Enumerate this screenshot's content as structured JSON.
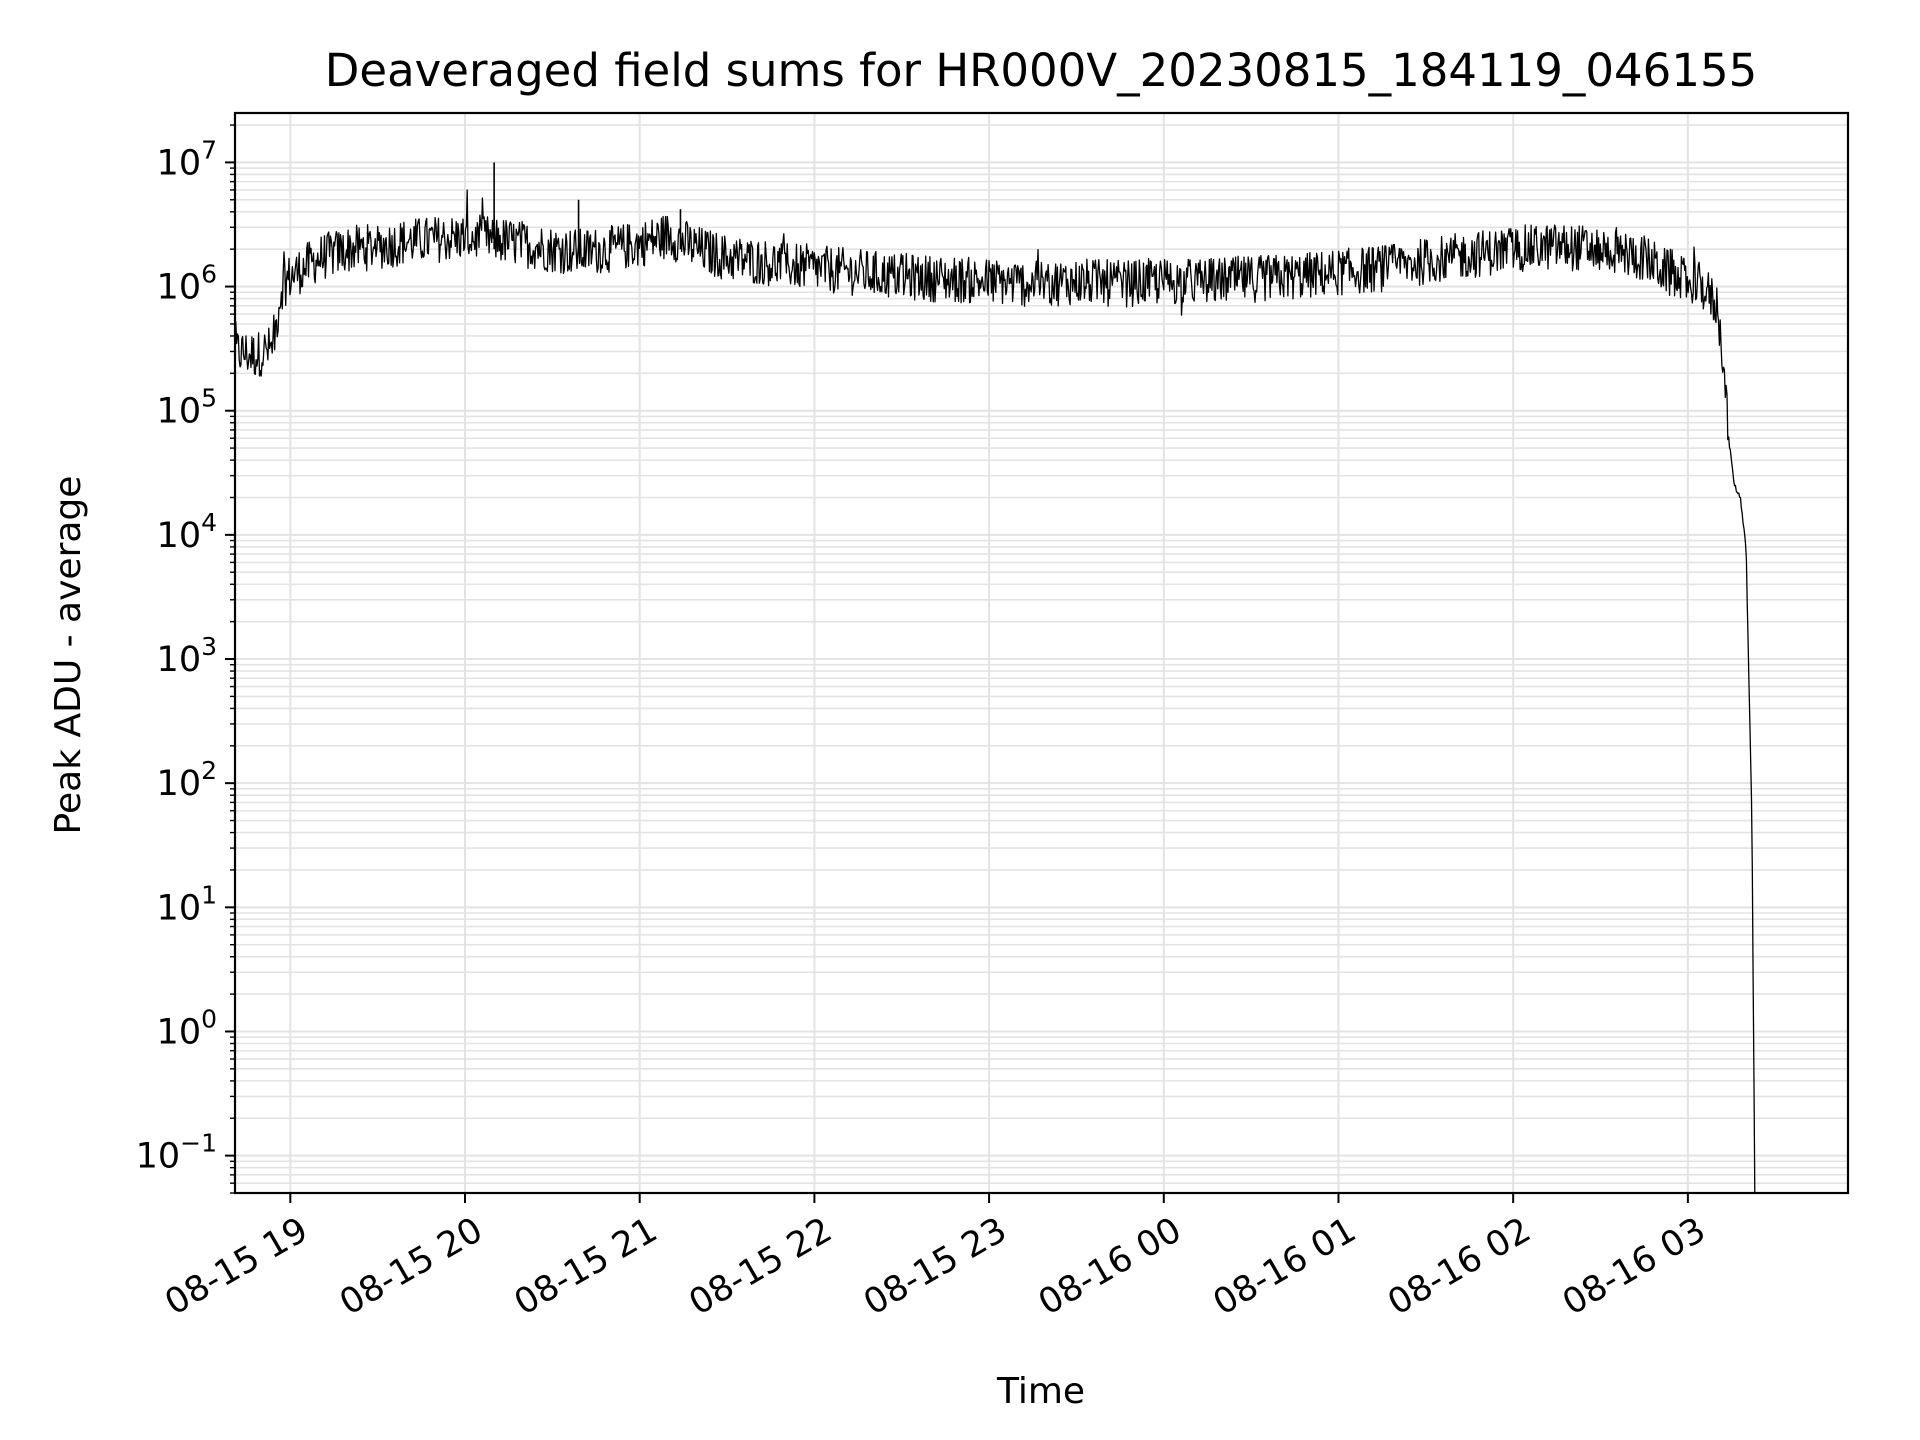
{
  "chart_data": {
    "type": "line",
    "title": "Deaveraged field sums for HR000V_20230815_184119_046155",
    "xlabel": "Time",
    "ylabel": "Peak ADU - average",
    "yscale": "log",
    "ylim": [
      0.05,
      25000000
    ],
    "xlim": [
      "2023-08-15 18:41:00",
      "2023-08-16 03:55:00"
    ],
    "grid": true,
    "line_color": "#000000",
    "grid_color": "#e3e3e3",
    "x_ticks": [
      {
        "value": "2023-08-15 19:00",
        "label": "08-15 19"
      },
      {
        "value": "2023-08-15 20:00",
        "label": "08-15 20"
      },
      {
        "value": "2023-08-15 21:00",
        "label": "08-15 21"
      },
      {
        "value": "2023-08-15 22:00",
        "label": "08-15 22"
      },
      {
        "value": "2023-08-15 23:00",
        "label": "08-15 23"
      },
      {
        "value": "2023-08-16 00:00",
        "label": "08-16 00"
      },
      {
        "value": "2023-08-16 01:00",
        "label": "08-16 01"
      },
      {
        "value": "2023-08-16 02:00",
        "label": "08-16 02"
      },
      {
        "value": "2023-08-16 03:00",
        "label": "08-16 03"
      }
    ],
    "y_ticks": [
      {
        "value": 0.1,
        "base": "10",
        "exp": "−1"
      },
      {
        "value": 1,
        "base": "10",
        "exp": "0"
      },
      {
        "value": 10,
        "base": "10",
        "exp": "1"
      },
      {
        "value": 100,
        "base": "10",
        "exp": "2"
      },
      {
        "value": 1000,
        "base": "10",
        "exp": "3"
      },
      {
        "value": 10000,
        "base": "10",
        "exp": "4"
      },
      {
        "value": 100000,
        "base": "10",
        "exp": "5"
      },
      {
        "value": 1000000,
        "base": "10",
        "exp": "6"
      },
      {
        "value": 10000000,
        "base": "10",
        "exp": "7"
      }
    ],
    "series": [
      {
        "x": [
          "2023-08-15 18:41",
          "2023-08-15 18:48",
          "2023-08-15 18:54",
          "2023-08-15 18:57",
          "2023-08-15 19:00",
          "2023-08-15 19:10",
          "2023-08-15 19:20",
          "2023-08-15 19:30",
          "2023-08-15 19:40",
          "2023-08-15 19:50",
          "2023-08-15 20:00",
          "2023-08-15 20:10",
          "2023-08-15 20:20",
          "2023-08-15 20:30",
          "2023-08-15 20:40",
          "2023-08-15 20:50",
          "2023-08-15 21:00",
          "2023-08-15 21:10",
          "2023-08-15 21:20",
          "2023-08-15 21:30",
          "2023-08-15 21:40",
          "2023-08-15 21:50",
          "2023-08-15 22:00",
          "2023-08-15 22:15",
          "2023-08-15 22:30",
          "2023-08-15 22:45",
          "2023-08-15 23:00",
          "2023-08-15 23:15",
          "2023-08-15 23:30",
          "2023-08-15 23:45",
          "2023-08-16 00:00",
          "2023-08-16 00:15",
          "2023-08-16 00:30",
          "2023-08-16 00:45",
          "2023-08-16 01:00",
          "2023-08-16 01:15",
          "2023-08-16 01:30",
          "2023-08-16 01:45",
          "2023-08-16 02:00",
          "2023-08-16 02:15",
          "2023-08-16 02:30",
          "2023-08-16 02:45",
          "2023-08-16 02:55",
          "2023-08-16 03:05",
          "2023-08-16 03:10",
          "2023-08-16 03:12",
          "2023-08-16 03:14",
          "2023-08-16 03:16",
          "2023-08-16 03:18",
          "2023-08-16 03:20",
          "2023-08-16 03:22",
          "2023-08-16 03:23"
        ],
        "y": [
          300000,
          280000,
          320000,
          1000000,
          1200000,
          1700000,
          2000000,
          2100000,
          2300000,
          2400000,
          2500000,
          2400000,
          2200000,
          2000000,
          1900000,
          2000000,
          2200000,
          2600000,
          2000000,
          1700000,
          1600000,
          1500000,
          1400000,
          1300000,
          1200000,
          1150000,
          1100000,
          1050000,
          1100000,
          1050000,
          1100000,
          1100000,
          1150000,
          1200000,
          1300000,
          1400000,
          1600000,
          1800000,
          2000000,
          2100000,
          2000000,
          1700000,
          1200000,
          1000000,
          700000,
          300000,
          60000,
          25000,
          20000,
          8000,
          50,
          0.05
        ]
      }
    ]
  }
}
